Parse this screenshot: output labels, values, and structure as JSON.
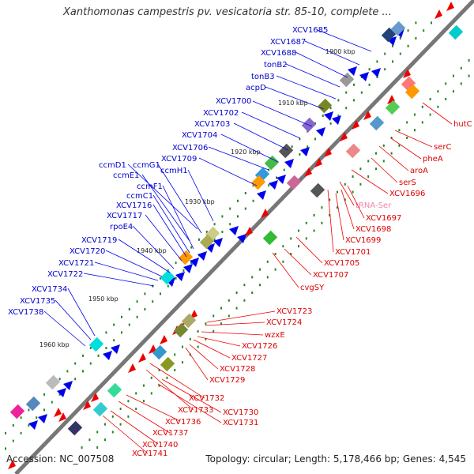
{
  "title": "Xanthomonas campestris pv. vesicatoria str. 85-10, complete ...",
  "footer": {
    "accession": "Accession: NC_007508",
    "stats": "Topology: circular; Length: 5,178,466 bp; Genes: 4,545"
  },
  "ticks": [
    "1900 kbp",
    "1910 kbp",
    "1920 kbp",
    "1930 kbp",
    "1940 kbp",
    "1950 kbp",
    "1960 kbp"
  ],
  "colors": {
    "forward_label": "#0000cc",
    "reverse_label": "#dd0000",
    "trna_label": "#ee88aa",
    "backbone": "#888888"
  },
  "forward_labels": [
    "XCV1685",
    "XCV1687",
    "XCV1688",
    "tonB2",
    "tonB3",
    "acpD",
    "XCV1700",
    "XCV1702",
    "XCV1703",
    "XCV1704",
    "XCV1706",
    "XCV1709",
    "ccmD1",
    "ccmG1",
    "ccmE1",
    "ccmH1",
    "ccmF1",
    "ccmC1",
    "XCV1716",
    "XCV1717",
    "rpoE4",
    "XCV1719",
    "XCV1720",
    "XCV1721",
    "XCV1722",
    "XCV1734",
    "XCV1735",
    "XCV1738"
  ],
  "reverse_labels": [
    "hutC",
    "serC",
    "pheA",
    "aroA",
    "serS",
    "XCV1696",
    "tRNA-Ser",
    "XCV1697",
    "XCV1698",
    "XCV1699",
    "XCV1701",
    "XCV1705",
    "XCV1707",
    "cvgSY",
    "XCV1723",
    "XCV1724",
    "wzxE",
    "XCV1726",
    "XCV1727",
    "XCV1728",
    "XCV1729",
    "XCV1732",
    "XCV1733",
    "XCV1730",
    "XCV1731",
    "XCV1736",
    "XCV1737",
    "XCV1740",
    "XCV1741"
  ]
}
